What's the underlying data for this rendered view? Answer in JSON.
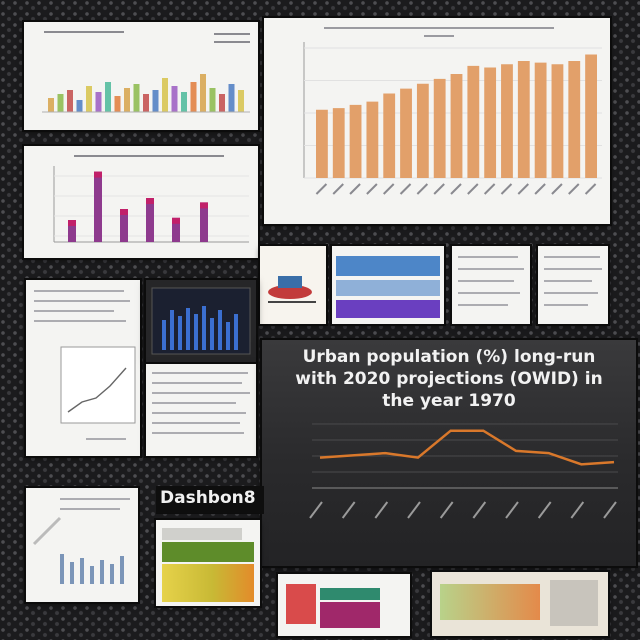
{
  "collage": {
    "label_box": "Dashbon8"
  },
  "main_chart": {
    "title": "Urban population (%) long-run with 2020 projections (OWID) in the year 1970",
    "series": [
      {
        "x": 0,
        "y": 20
      },
      {
        "x": 1,
        "y": 21
      },
      {
        "x": 2,
        "y": 22
      },
      {
        "x": 3,
        "y": 20
      },
      {
        "x": 4,
        "y": 32
      },
      {
        "x": 5,
        "y": 32
      },
      {
        "x": 6,
        "y": 23
      },
      {
        "x": 7,
        "y": 22
      },
      {
        "x": 8,
        "y": 17
      },
      {
        "x": 9,
        "y": 18
      }
    ],
    "line_color": "#d9782b"
  },
  "bar_chart_top_right": {
    "values": [
      42,
      43,
      45,
      47,
      52,
      55,
      58,
      61,
      64,
      69,
      68,
      70,
      72,
      71,
      70,
      72,
      76
    ],
    "bar_color": "#e2a06a"
  },
  "bar_chart_mid_left": {
    "values": [
      10,
      32,
      15,
      20,
      11,
      18
    ]
  },
  "colors": {
    "page_bg": "#1b1b1d",
    "panel_bg": "#f4f4f2",
    "dark_panel_bg": "#2c2c2e",
    "accent_orange": "#d9782b"
  }
}
